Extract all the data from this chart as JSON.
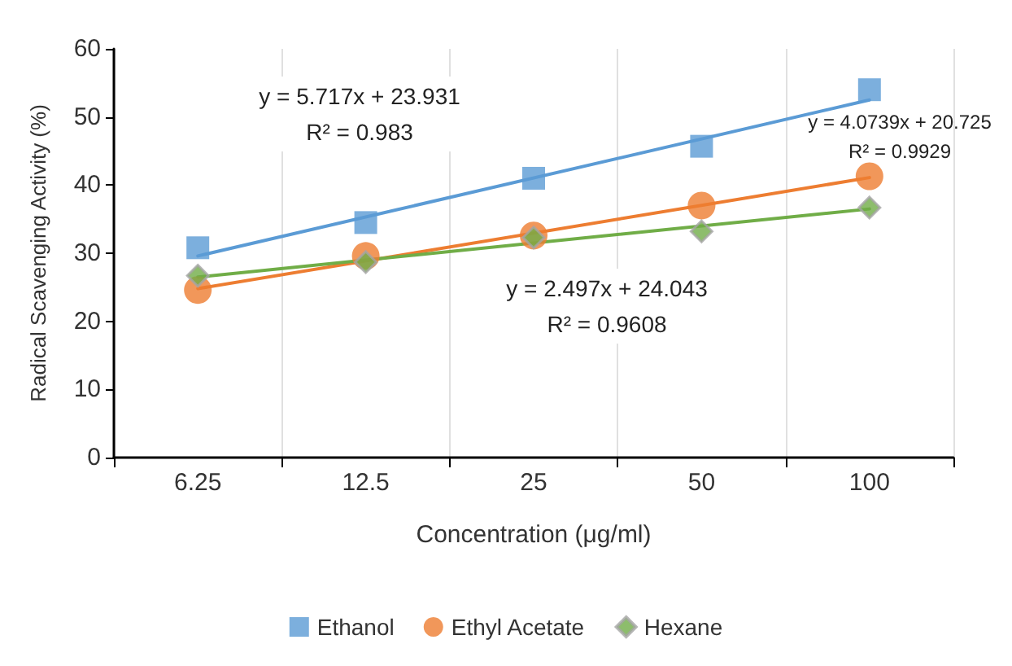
{
  "chart_data": {
    "type": "scatter",
    "xlabel": "Concentration (μg/ml)",
    "ylabel": "Radical Scavenging Activity (%)",
    "categories": [
      "6.25",
      "12.5",
      "25",
      "50",
      "100"
    ],
    "series": [
      {
        "name": "Ethanol",
        "marker": "square",
        "color": "#5b9bd5",
        "values": [
          30.8,
          34.5,
          41,
          45.7,
          54
        ]
      },
      {
        "name": "Ethyl Acetate",
        "marker": "circle",
        "color": "#ed7d31",
        "values": [
          24.6,
          29.6,
          32.6,
          37,
          41.3
        ]
      },
      {
        "name": "Hexane",
        "marker": "diamond",
        "color": "#70ad47",
        "values": [
          26.7,
          28.7,
          32.3,
          33.2,
          36.7
        ]
      },
      {
        "type": "line",
        "color": "#5b9bd5",
        "marker": "none",
        "line_style": "solid",
        "x": [
          "6.25",
          "100"
        ],
        "values": [
          29.6,
          52.5
        ]
      },
      {
        "type": "line",
        "color": "#ed7d31",
        "marker": "none",
        "line_style": "solid",
        "x": [
          "6.25",
          "100"
        ],
        "values": [
          24.8,
          41.1
        ]
      },
      {
        "type": "line",
        "color": "#70ad47",
        "marker": "none",
        "line_style": "solid",
        "x": [
          "6.25",
          "100"
        ],
        "values": [
          26.5,
          36.5
        ]
      }
    ],
    "ylim": [
      0,
      60
    ],
    "yticks": [
      0,
      10,
      20,
      30,
      40,
      50,
      60
    ],
    "grid": "x",
    "legend": "bottom",
    "annotations": [
      "y = 5.717x + 23.931\nR² = 0.983",
      "y = 4.0739x + 20.725\nR² = 0.9929",
      "y = 2.497x + 24.043\nR² = 0.9608"
    ]
  }
}
